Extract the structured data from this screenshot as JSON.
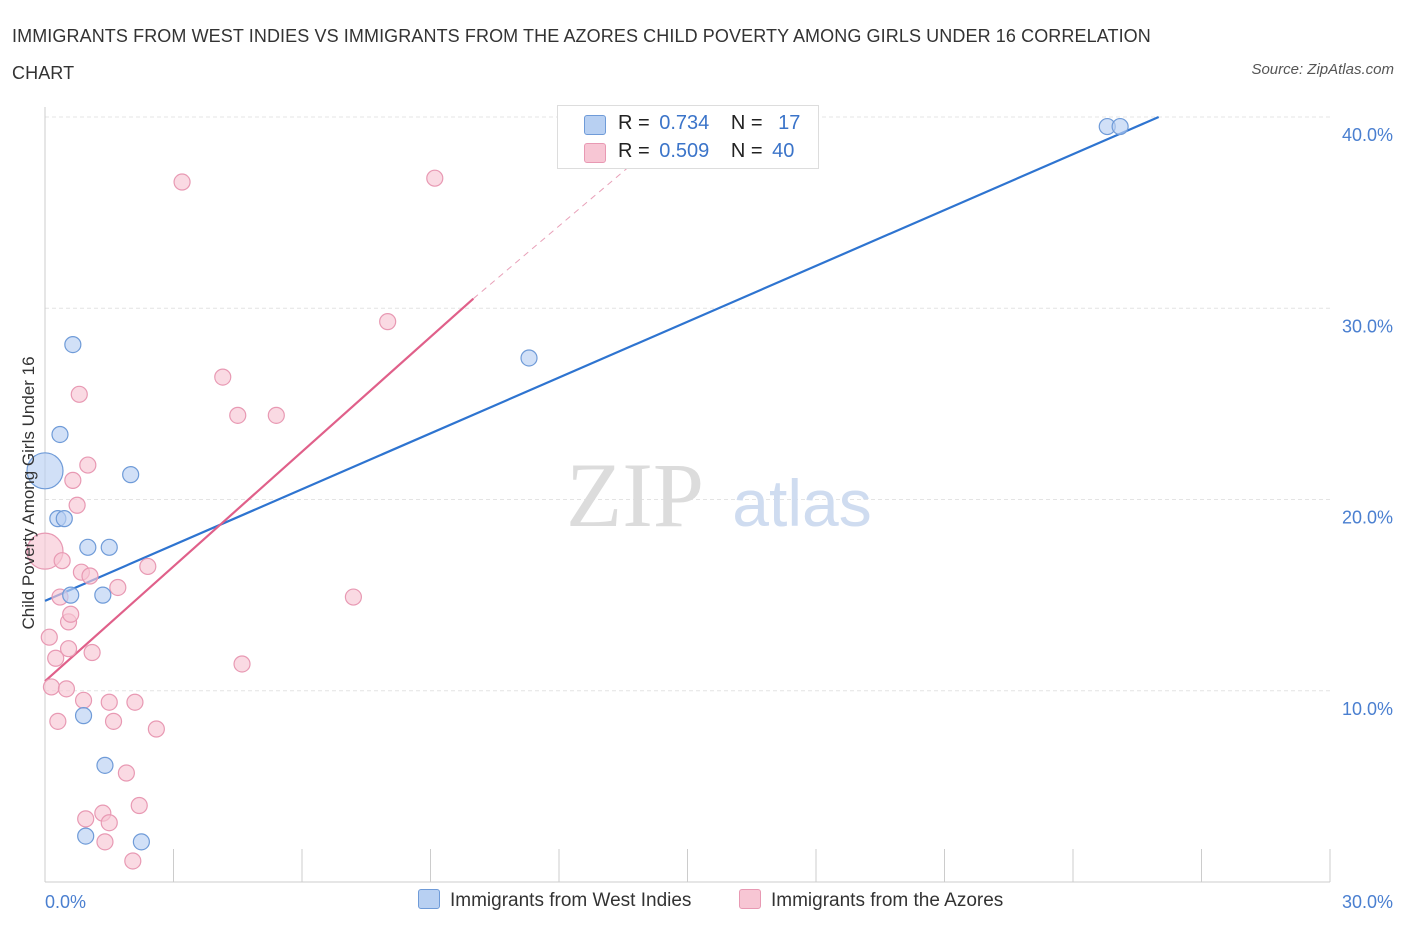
{
  "title": "IMMIGRANTS FROM WEST INDIES VS IMMIGRANTS FROM THE AZORES CHILD POVERTY AMONG GIRLS UNDER 16 CORRELATION CHART",
  "source": "Source: ZipAtlas.com",
  "watermark": {
    "zip": "ZIP",
    "atlas": "atlas"
  },
  "legend": {
    "series1": {
      "r_label": "R =",
      "r_value": "0.734",
      "n_label": "N =",
      "n_value": "17"
    },
    "series2": {
      "r_label": "R =",
      "r_value": "0.509",
      "n_label": "N =",
      "n_value": "40"
    }
  },
  "colors": {
    "blue_fill": "#b8d0f2",
    "blue_stroke": "#6f9bd8",
    "blue_line": "#2e74d0",
    "pink_fill": "#f7c6d4",
    "pink_stroke": "#e899b3",
    "pink_line": "#e0608a",
    "grid": "#e4e4e4",
    "axis_text": "#4a7fd0"
  },
  "chart_data": {
    "type": "scatter",
    "title": "IMMIGRANTS FROM WEST INDIES VS IMMIGRANTS FROM THE AZORES CHILD POVERTY AMONG GIRLS UNDER 16 CORRELATION CHART",
    "xlabel": "",
    "ylabel": "Child Poverty Among Girls Under 16",
    "xlim": [
      0,
      30
    ],
    "ylim": [
      0,
      40
    ],
    "x_tick_labels": [
      "0.0%",
      "30.0%"
    ],
    "y_ticks": [
      10,
      20,
      30,
      40
    ],
    "y_tick_labels": [
      "10.0%",
      "20.0%",
      "30.0%",
      "40.0%"
    ],
    "series": [
      {
        "name": "Immigrants from West Indies",
        "color": "blue",
        "R": 0.734,
        "N": 17,
        "trend": {
          "x": [
            0,
            26
          ],
          "y": [
            14.7,
            40.0
          ]
        },
        "points": [
          {
            "x": 0.0,
            "y": 21.5,
            "big": true
          },
          {
            "x": 0.3,
            "y": 19.0
          },
          {
            "x": 0.35,
            "y": 23.4
          },
          {
            "x": 0.45,
            "y": 19.0
          },
          {
            "x": 0.65,
            "y": 28.1
          },
          {
            "x": 0.6,
            "y": 15.0
          },
          {
            "x": 1.0,
            "y": 17.5
          },
          {
            "x": 1.35,
            "y": 15.0
          },
          {
            "x": 1.5,
            "y": 17.5
          },
          {
            "x": 2.0,
            "y": 21.3
          },
          {
            "x": 0.9,
            "y": 8.7
          },
          {
            "x": 1.4,
            "y": 6.1
          },
          {
            "x": 0.95,
            "y": 2.4
          },
          {
            "x": 2.25,
            "y": 2.1
          },
          {
            "x": 11.3,
            "y": 27.4
          },
          {
            "x": 24.8,
            "y": 39.5
          },
          {
            "x": 25.1,
            "y": 39.5
          }
        ]
      },
      {
        "name": "Immigrants from the Azores",
        "color": "pink",
        "R": 0.509,
        "N": 40,
        "trend": {
          "x": [
            0,
            10
          ],
          "y": [
            10.5,
            30.5
          ]
        },
        "trend_dashed": {
          "x": [
            10,
            15
          ],
          "y": [
            30.5,
            40.0
          ]
        },
        "points": [
          {
            "x": 0.0,
            "y": 17.3,
            "big": true
          },
          {
            "x": 0.1,
            "y": 12.8
          },
          {
            "x": 0.15,
            "y": 10.2
          },
          {
            "x": 0.25,
            "y": 11.7
          },
          {
            "x": 0.3,
            "y": 8.4
          },
          {
            "x": 0.35,
            "y": 14.9
          },
          {
            "x": 0.4,
            "y": 16.8
          },
          {
            "x": 0.5,
            "y": 10.1
          },
          {
            "x": 0.55,
            "y": 12.2
          },
          {
            "x": 0.55,
            "y": 13.6
          },
          {
            "x": 0.6,
            "y": 14.0
          },
          {
            "x": 0.65,
            "y": 21.0
          },
          {
            "x": 0.75,
            "y": 19.7
          },
          {
            "x": 0.8,
            "y": 25.5
          },
          {
            "x": 0.85,
            "y": 16.2
          },
          {
            "x": 0.9,
            "y": 9.5
          },
          {
            "x": 0.95,
            "y": 3.3
          },
          {
            "x": 1.0,
            "y": 21.8
          },
          {
            "x": 1.05,
            "y": 16.0
          },
          {
            "x": 1.1,
            "y": 12.0
          },
          {
            "x": 1.35,
            "y": 3.6
          },
          {
            "x": 1.4,
            "y": 2.1
          },
          {
            "x": 1.5,
            "y": 3.1
          },
          {
            "x": 1.5,
            "y": 9.4
          },
          {
            "x": 1.6,
            "y": 8.4
          },
          {
            "x": 1.7,
            "y": 15.4
          },
          {
            "x": 1.9,
            "y": 5.7
          },
          {
            "x": 2.05,
            "y": 1.1
          },
          {
            "x": 2.1,
            "y": 9.4
          },
          {
            "x": 2.2,
            "y": 4.0
          },
          {
            "x": 2.4,
            "y": 16.5
          },
          {
            "x": 2.6,
            "y": 8.0
          },
          {
            "x": 3.2,
            "y": 36.6
          },
          {
            "x": 4.15,
            "y": 26.4
          },
          {
            "x": 4.5,
            "y": 24.4
          },
          {
            "x": 4.6,
            "y": 11.4
          },
          {
            "x": 5.4,
            "y": 24.4
          },
          {
            "x": 7.2,
            "y": 14.9
          },
          {
            "x": 8.0,
            "y": 29.3
          },
          {
            "x": 9.1,
            "y": 36.8
          }
        ]
      }
    ]
  },
  "bottom_legend": {
    "series1_label": "Immigrants from West Indies",
    "series2_label": "Immigrants from the Azores"
  }
}
